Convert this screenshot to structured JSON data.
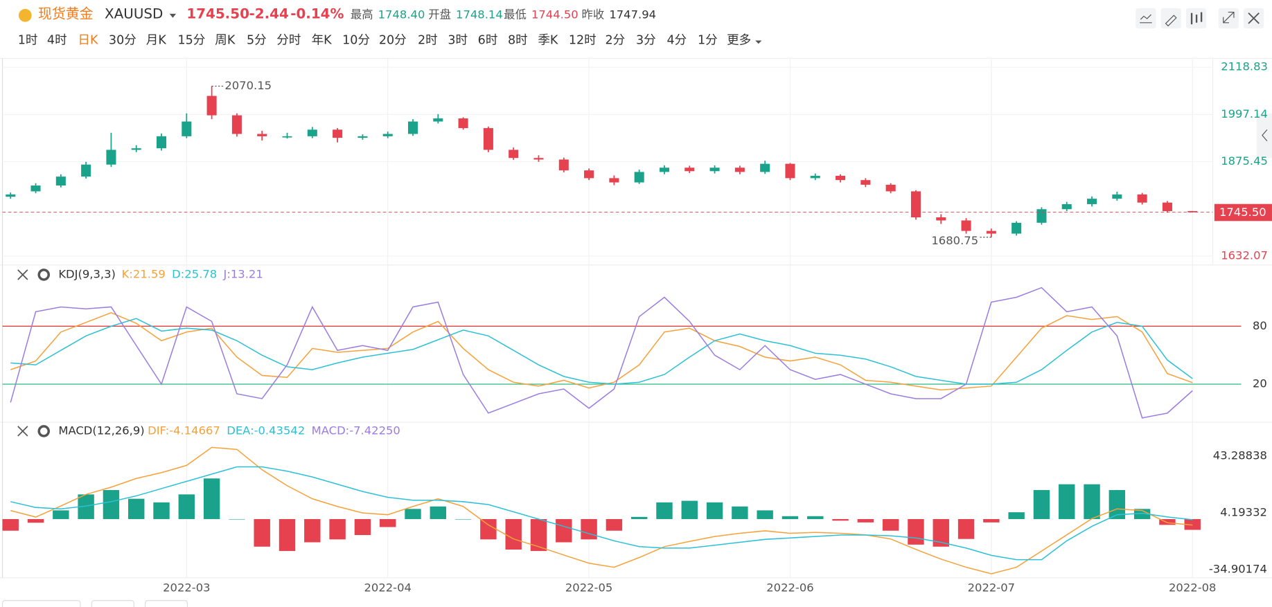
{
  "header": {
    "name": "现货黄金",
    "symbol": "XAUUSD",
    "price": "1745.50",
    "change": "-2.44",
    "change_pct": "-0.14%",
    "stats": [
      {
        "label": "最高",
        "value": "1748.40"
      },
      {
        "label": "开盘",
        "value": "1748.14"
      },
      {
        "label": "最低",
        "value": "1744.50"
      },
      {
        "label": "昨收",
        "value": "1747.94"
      }
    ]
  },
  "timeframes": [
    "1时",
    "4时",
    "日K",
    "30分",
    "月K",
    "15分",
    "周K",
    "5分",
    "分时",
    "年K",
    "10分",
    "20分",
    "2时",
    "3时",
    "6时",
    "8时",
    "季K",
    "12时",
    "2分",
    "3分",
    "4分",
    "1分",
    "更多"
  ],
  "chart_data": [
    {
      "type": "candlestick",
      "up_color": "#1aa38a",
      "down_color": "#e5414f",
      "categories": [
        null,
        null,
        null,
        null,
        null,
        null,
        null,
        "2022-03",
        null,
        null,
        null,
        null,
        null,
        null,
        null,
        "2022-04",
        null,
        null,
        null,
        null,
        null,
        null,
        null,
        "2022-05",
        null,
        null,
        null,
        null,
        null,
        null,
        null,
        "2022-06",
        null,
        null,
        null,
        null,
        null,
        null,
        null,
        "2022-07",
        null,
        null,
        null,
        null,
        null,
        null,
        null,
        "2022-08"
      ],
      "open": [
        1785,
        1799,
        1814,
        1837,
        1868,
        1906,
        1910,
        1941,
        2045,
        1995,
        1947,
        1941,
        1941,
        1958,
        1937,
        1941,
        1947,
        1979,
        1987,
        1962,
        1906,
        1885,
        1881,
        1853,
        1833,
        1822,
        1849,
        1860,
        1851,
        1860,
        1849,
        1870,
        1833,
        1839,
        1828,
        1816,
        1799,
        1732,
        1724,
        1697,
        1690,
        1718,
        1753,
        1766,
        1780,
        1791,
        1770,
        1748.14
      ],
      "high": [
        1796,
        1820,
        1843,
        1875,
        1950,
        1918,
        1948,
        2000,
        2070.15,
        2000,
        1955,
        1950,
        1965,
        1962,
        1946,
        1953,
        1985,
        1998,
        1990,
        1966,
        1912,
        1892,
        1886,
        1858,
        1840,
        1855,
        1866,
        1865,
        1866,
        1865,
        1878,
        1872,
        1845,
        1843,
        1833,
        1820,
        1802,
        1740,
        1730,
        1703,
        1722,
        1758,
        1772,
        1786,
        1798,
        1795,
        1774,
        1748.4
      ],
      "low": [
        1780,
        1794,
        1809,
        1832,
        1862,
        1900,
        1904,
        1936,
        1985,
        1940,
        1930,
        1935,
        1936,
        1925,
        1932,
        1936,
        1942,
        1974,
        1958,
        1900,
        1880,
        1875,
        1848,
        1828,
        1815,
        1818,
        1843,
        1846,
        1845,
        1843,
        1844,
        1828,
        1828,
        1822,
        1810,
        1794,
        1726,
        1715,
        1690,
        1680.75,
        1685,
        1713,
        1748,
        1760,
        1775,
        1765,
        1744,
        1744.5
      ],
      "close": [
        1791,
        1814,
        1837,
        1868,
        1906,
        1910,
        1941,
        1979,
        1995,
        1947,
        1941,
        1941,
        1958,
        1937,
        1941,
        1947,
        1979,
        1987,
        1962,
        1906,
        1885,
        1881,
        1853,
        1833,
        1822,
        1849,
        1860,
        1851,
        1860,
        1849,
        1870,
        1833,
        1839,
        1828,
        1816,
        1799,
        1732,
        1724,
        1697,
        1690,
        1718,
        1753,
        1766,
        1780,
        1791,
        1770,
        1748,
        1745.5
      ],
      "ylim": [
        1613.3,
        2141.8
      ],
      "yticks": [
        1632.07,
        1875.45,
        1997.14,
        2118.83
      ],
      "grid": true
    },
    {
      "type": "line",
      "title": "KDJ(9,3,3)",
      "ylim": [
        -18.6,
        142.6
      ],
      "yticks": [
        20,
        80
      ],
      "tick_colors": [
        "#3cc08c",
        "#e04040"
      ],
      "series": [
        {
          "name": "K:21.59",
          "color": "#f6a13a",
          "values": [
            35,
            44,
            74,
            84,
            94,
            83,
            65,
            74,
            78,
            48,
            29,
            27,
            57,
            53,
            55,
            57,
            74,
            85,
            57,
            35,
            22,
            18,
            24,
            16,
            22,
            40,
            74,
            78,
            65,
            59,
            48,
            44,
            48,
            40,
            24,
            22,
            18,
            14,
            16,
            18,
            48,
            78,
            91,
            87,
            90,
            74,
            31,
            21.59
          ]
        },
        {
          "name": "D:25.78",
          "color": "#2cc0d6",
          "values": [
            42,
            40,
            55,
            70,
            80,
            88,
            75,
            78,
            76,
            65,
            50,
            38,
            35,
            42,
            48,
            52,
            56,
            66,
            76,
            70,
            55,
            40,
            28,
            22,
            20,
            22,
            30,
            48,
            65,
            72,
            65,
            60,
            52,
            50,
            46,
            38,
            28,
            24,
            20,
            20,
            22,
            35,
            55,
            74,
            84,
            80,
            45,
            25.78
          ]
        },
        {
          "name": "J:13.21",
          "color": "#9b7ce0",
          "values": [
            1,
            95,
            100,
            98,
            100,
            60,
            20,
            100,
            85,
            10,
            5,
            40,
            100,
            55,
            60,
            55,
            100,
            105,
            30,
            -10,
            0,
            10,
            15,
            -5,
            15,
            90,
            110,
            85,
            50,
            35,
            60,
            35,
            25,
            30,
            20,
            10,
            5,
            5,
            20,
            105,
            110,
            120,
            95,
            100,
            70,
            -15,
            -10,
            13.21
          ]
        }
      ]
    },
    {
      "type": "macd",
      "title": "MACD(12,26,9)",
      "ylim": [
        -39.93,
        66.19
      ],
      "yticks": [
        -34.90174,
        4.19332,
        43.28838
      ],
      "up_color": "#1aa38a",
      "down_color": "#e5414f",
      "series": [
        {
          "name": "DIF:-4.14667",
          "color": "#f6a13a",
          "values": [
            5.9,
            1.4,
            9,
            17,
            22,
            28,
            32,
            37,
            49.4,
            48,
            34,
            23,
            14,
            8.7,
            4.2,
            3,
            8.7,
            14,
            8.7,
            -4,
            -13.7,
            -19,
            -24.8,
            -30.4,
            -33.2,
            -26.5,
            -19,
            -15.4,
            -12,
            -9.8,
            -8.1,
            -9.8,
            -9.2,
            -9.8,
            -10.9,
            -13.7,
            -20.9,
            -27.6,
            -33.2,
            -37.7,
            -33.2,
            -22,
            -10.9,
            0.3,
            7,
            5.9,
            -2.5,
            -4.14667
          ]
        },
        {
          "name": "DEA:-0.43542",
          "color": "#2cc0d6",
          "values": [
            12,
            8,
            7,
            9,
            12,
            16,
            21,
            26,
            31,
            36,
            36,
            33,
            29,
            24,
            19,
            15,
            13,
            13,
            12,
            10,
            5,
            0,
            -5,
            -10,
            -15,
            -19,
            -20,
            -20,
            -18,
            -16,
            -14,
            -13,
            -12,
            -11,
            -11,
            -11.5,
            -13,
            -16,
            -20,
            -25,
            -28,
            -28,
            -15,
            -5,
            3,
            4,
            1.5,
            -0.43542
          ]
        },
        {
          "name": "MACD:-7.42250",
          "color": "#9b7ce0",
          "values": [
            -8,
            -2.5,
            6,
            17,
            20,
            14,
            11.5,
            17,
            28,
            0,
            -19,
            -22,
            -16,
            -14,
            -11,
            -5.5,
            7,
            8.7,
            0,
            -14,
            -21,
            -22,
            -16,
            -14,
            -8,
            1.5,
            11.5,
            12.6,
            11.5,
            8.7,
            6,
            2,
            2,
            -1.1,
            -2.3,
            -8,
            -17.6,
            -19,
            -13.7,
            -2.3,
            4.7,
            20,
            24,
            24,
            20,
            7,
            -4,
            -7.4225
          ]
        }
      ]
    }
  ]
}
